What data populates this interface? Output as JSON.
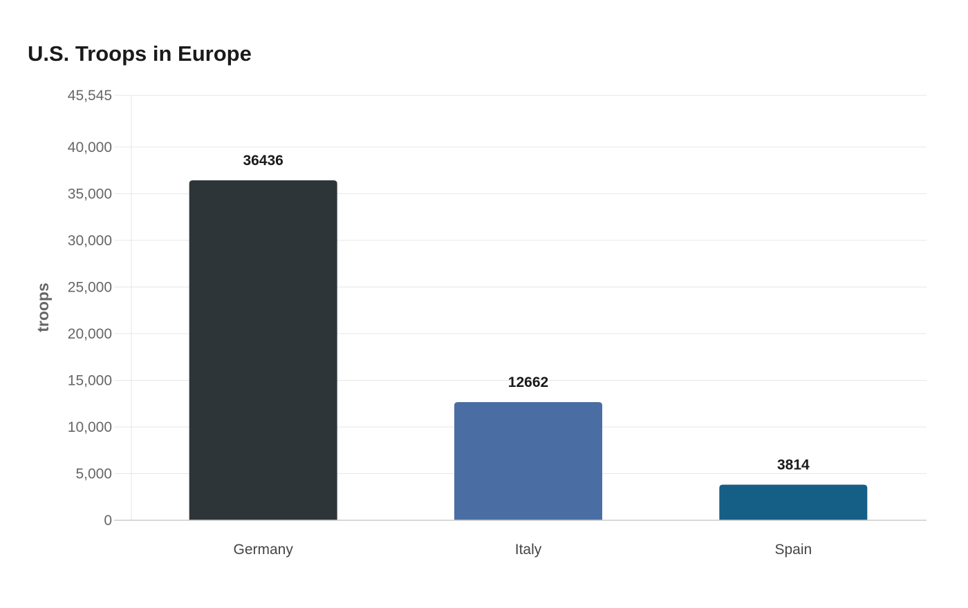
{
  "chart_data": {
    "type": "bar",
    "title": "U.S. Troops in Europe",
    "xlabel": "",
    "ylabel": "troops",
    "categories": [
      "Germany",
      "Italy",
      "Spain"
    ],
    "values": [
      36436,
      12662,
      3814
    ],
    "value_labels": [
      "36436",
      "12662",
      "3814"
    ],
    "colors": [
      "#2e3538",
      "#4a6ea4",
      "#155f87"
    ],
    "ylim": [
      0,
      45545
    ],
    "yticks": [
      0,
      5000,
      10000,
      15000,
      20000,
      25000,
      30000,
      35000,
      40000,
      45545
    ],
    "ytick_labels": [
      "0",
      "5,000",
      "10,000",
      "15,000",
      "20,000",
      "25,000",
      "30,000",
      "35,000",
      "40,000",
      "45,545"
    ],
    "grid": true,
    "legend": "none"
  }
}
